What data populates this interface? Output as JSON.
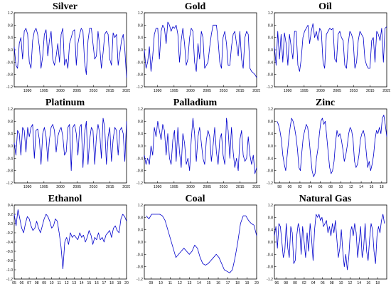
{
  "chart_data": [
    {
      "type": "line",
      "title": "Silver",
      "color": "#0000cc",
      "ylim": [
        -1.2,
        1.2
      ],
      "yticks": [
        "1.2",
        "0.8",
        "0.4",
        "0.0",
        "-0.4",
        "-0.8",
        "-1.2"
      ],
      "xlim": [
        1986,
        2020
      ],
      "xticks": [
        "1990",
        "1995",
        "2000",
        "2005",
        "2010",
        "2015",
        "2020"
      ],
      "x_start": 1986,
      "x_end": 2020,
      "values": [
        0.1,
        -0.5,
        -0.6,
        0.2,
        0.4,
        -0.3,
        0.6,
        0.7,
        0.5,
        -0.4,
        -0.6,
        0.3,
        0.6,
        0.7,
        0.5,
        0.1,
        -0.6,
        -0.2,
        0.5,
        0.65,
        -0.2,
        0.3,
        0.6,
        -0.3,
        -0.5,
        -0.2,
        0.2,
        -0.4,
        0.5,
        0.7,
        -0.5,
        -0.3,
        -0.6,
        0.2,
        0.4,
        0.6,
        0.65,
        -0.5,
        0.2,
        0.5,
        0.7,
        0.6,
        -0.4,
        -0.8,
        0.3,
        0.7,
        0.7,
        0.2,
        -0.3,
        -0.2,
        0.6,
        0.1,
        -0.6,
        -0.1,
        0.5,
        0.6,
        0.5,
        -0.3,
        -0.5,
        0.55,
        0.4,
        0.5,
        -0.5,
        -0.1,
        0.3,
        0.5,
        0.0,
        -0.9
      ]
    },
    {
      "type": "line",
      "title": "Gold",
      "color": "#0000cc",
      "ylim": [
        -1.2,
        1.2
      ],
      "yticks": [
        "1.2",
        "0.8",
        "0.4",
        "0.0",
        "-0.4",
        "-0.8",
        "-1.2"
      ],
      "xlim": [
        1986,
        2020
      ],
      "xticks": [
        "1990",
        "1995",
        "2000",
        "2005",
        "2010",
        "2015",
        "2020"
      ],
      "x_start": 1986,
      "x_end": 2020,
      "values": [
        0.0,
        -0.6,
        -0.4,
        0.1,
        -0.7,
        -0.2,
        0.5,
        0.7,
        0.7,
        -0.3,
        0.6,
        0.8,
        0.7,
        0.2,
        0.9,
        0.8,
        0.6,
        0.75,
        0.7,
        0.8,
        0.5,
        -0.4,
        0.3,
        0.7,
        0.2,
        -0.5,
        -0.3,
        0.4,
        0.7,
        0.6,
        -0.4,
        -0.7,
        0.2,
        -0.3,
        0.6,
        0.4,
        -0.6,
        -0.5,
        -0.4,
        0.1,
        0.5,
        0.8,
        0.8,
        0.8,
        0.3,
        -0.4,
        -0.6,
        0.4,
        0.6,
        0.2,
        -0.5,
        -0.5,
        0.1,
        0.5,
        0.6,
        0.2,
        -0.2,
        0.6,
        -0.3,
        -0.6,
        0.4,
        0.6,
        0.5,
        -0.6,
        -0.7,
        -0.75,
        -0.8,
        -0.9
      ]
    },
    {
      "type": "line",
      "title": "Oil",
      "color": "#0000cc",
      "ylim": [
        -1.2,
        1.2
      ],
      "yticks": [
        "1.2",
        "0.8",
        "0.4",
        "0.0",
        "-0.4",
        "-0.8",
        "-1.2"
      ],
      "xlim": [
        1986,
        2020
      ],
      "xticks": [
        "1990",
        "1995",
        "2000",
        "2005",
        "2010",
        "2015",
        "2020"
      ],
      "x_start": 1986,
      "x_end": 2020,
      "values": [
        0.1,
        -0.5,
        0.6,
        -0.3,
        0.5,
        -0.4,
        0.55,
        0.2,
        -0.5,
        0.5,
        0.1,
        -0.3,
        0.6,
        0.6,
        -0.5,
        -0.7,
        -0.3,
        0.4,
        0.6,
        0.7,
        0.8,
        0.2,
        0.6,
        0.85,
        0.4,
        0.6,
        0.3,
        0.7,
        0.6,
        -0.4,
        -0.6,
        0.5,
        0.6,
        0.7,
        0.65,
        0.7,
        -0.3,
        -0.4,
        0.5,
        0.6,
        0.4,
        0.3,
        -0.5,
        -0.6,
        0.2,
        0.6,
        0.5,
        0.3,
        -0.6,
        -0.4,
        0.3,
        0.6,
        0.5,
        0.4,
        -0.3,
        -0.5,
        -0.6,
        -0.6,
        0.3,
        0.4,
        -0.4,
        0.6,
        0.5,
        0.3,
        0.7,
        -0.4,
        0.7,
        0.75
      ]
    },
    {
      "type": "line",
      "title": "Platinum",
      "color": "#0000cc",
      "ylim": [
        -1.2,
        1.2
      ],
      "yticks": [
        "1.2",
        "0.8",
        "0.4",
        "0.0",
        "-0.4",
        "-0.8",
        "-1.2"
      ],
      "xlim": [
        1986,
        2020
      ],
      "xticks": [
        "1990",
        "1995",
        "2000",
        "2005",
        "2010",
        "2015",
        "2020"
      ],
      "x_start": 1986,
      "x_end": 2020,
      "values": [
        0.1,
        -0.3,
        0.5,
        0.4,
        -0.3,
        0.6,
        0.5,
        -0.2,
        0.6,
        0.3,
        0.6,
        0.7,
        -0.4,
        0.5,
        0.55,
        0.2,
        -0.6,
        0.4,
        0.6,
        0.3,
        -0.5,
        0.2,
        0.6,
        0.7,
        0.5,
        -0.2,
        0.3,
        0.5,
        0.6,
        0.3,
        -0.3,
        -0.2,
        0.6,
        0.7,
        -0.8,
        0.6,
        0.7,
        0.4,
        -0.3,
        0.6,
        0.7,
        -0.7,
        0.4,
        0.8,
        -0.6,
        0.2,
        0.6,
        0.5,
        -0.6,
        0.3,
        0.7,
        0.4,
        -0.4,
        0.9,
        0.6,
        -0.6,
        0.3,
        0.6,
        -0.5,
        0.2,
        0.6,
        0.5,
        -0.3,
        0.5,
        0.6,
        0.4,
        -0.5,
        0.8
      ]
    },
    {
      "type": "line",
      "title": "Palladium",
      "color": "#0000cc",
      "ylim": [
        -1.2,
        1.2
      ],
      "yticks": [
        "1.2",
        "0.8",
        "0.4",
        "0.0",
        "-0.4",
        "-0.8",
        "-1.2"
      ],
      "xlim": [
        1986,
        2020
      ],
      "xticks": [
        "1990",
        "1995",
        "2000",
        "2005",
        "2010",
        "2015",
        "2020"
      ],
      "x_start": 1986,
      "x_end": 2020,
      "values": [
        -0.3,
        -0.6,
        -0.4,
        -0.6,
        0.0,
        -0.3,
        0.6,
        0.3,
        0.8,
        0.5,
        0.2,
        0.7,
        0.5,
        -0.3,
        0.4,
        -0.4,
        -0.6,
        0.2,
        0.5,
        -0.5,
        0.6,
        -0.2,
        -0.7,
        0.4,
        0.1,
        -0.6,
        -0.4,
        -0.8,
        0.2,
        0.9,
        0.4,
        -0.5,
        0.3,
        0.6,
        0.1,
        -0.4,
        -0.6,
        0.2,
        0.5,
        0.3,
        -0.5,
        0.0,
        0.6,
        -0.2,
        -0.6,
        0.2,
        0.4,
        -0.3,
        -0.6,
        0.9,
        0.5,
        -0.4,
        0.6,
        -0.2,
        -0.7,
        -0.4,
        -0.8,
        0.2,
        0.5,
        -0.3,
        -0.5,
        -0.4,
        0.3,
        -0.3,
        -0.6,
        -0.3,
        -0.9,
        -0.7
      ]
    },
    {
      "type": "line",
      "title": "Zinc",
      "color": "#0000cc",
      "ylim": [
        -1.2,
        1.2
      ],
      "yticks": [
        "1.2",
        "0.8",
        "0.4",
        "0.0",
        "-0.4",
        "-0.8",
        "-1.2"
      ],
      "xlim": [
        1997,
        2019
      ],
      "xticks": [
        "98",
        "00",
        "02",
        "04",
        "06",
        "08",
        "10",
        "12",
        "14",
        "16",
        "18"
      ],
      "x_start": 1997.5,
      "x_end": 2019,
      "values": [
        0.8,
        0.7,
        0.5,
        0.2,
        -0.3,
        -0.6,
        -0.8,
        -0.3,
        0.2,
        0.6,
        0.9,
        0.8,
        0.6,
        0.3,
        -0.1,
        -0.7,
        -0.8,
        -0.2,
        0.3,
        0.5,
        0.7,
        0.6,
        0.2,
        -0.3,
        -0.8,
        -1.0,
        -0.9,
        -0.4,
        -0.1,
        0.4,
        0.8,
        0.9,
        0.7,
        0.8,
        0.3,
        -0.2,
        -0.7,
        -0.9,
        -0.8,
        -0.5,
        0.1,
        0.5,
        0.3,
        0.4,
        0.2,
        -0.1,
        -0.5,
        -0.3,
        0.0,
        0.4,
        0.6,
        0.5,
        0.2,
        -0.5,
        -0.7,
        -0.6,
        -0.3,
        0.2,
        0.4,
        0.5,
        0.3,
        -0.2,
        -0.7,
        -0.5,
        -0.8,
        -0.6,
        -0.3,
        0.2,
        0.5,
        0.4,
        0.6,
        0.4,
        0.9,
        1.0,
        0.7,
        0.3
      ]
    },
    {
      "type": "line",
      "title": "Ethanol",
      "color": "#0000cc",
      "ylim": [
        -1.2,
        0.4
      ],
      "yticks": [
        "0.4",
        "0.2",
        "0.0",
        "-0.2",
        "-0.4",
        "-0.6",
        "-0.8",
        "-1.0",
        "-1.2"
      ],
      "xlim": [
        2005,
        2020
      ],
      "xticks": [
        "05",
        "06",
        "07",
        "08",
        "09",
        "10",
        "11",
        "12",
        "13",
        "14",
        "15",
        "16",
        "17",
        "18",
        "19",
        "20"
      ],
      "x_start": 2005,
      "x_end": 2020,
      "values": [
        0.2,
        -0.05,
        0.3,
        0.1,
        -0.1,
        -0.2,
        0.0,
        0.15,
        0.1,
        -0.05,
        -0.15,
        -0.1,
        0.05,
        -0.1,
        -0.2,
        -0.05,
        0.1,
        0.2,
        0.15,
        0.05,
        -0.1,
        -0.05,
        0.1,
        0.05,
        -0.2,
        -0.5,
        -0.98,
        -0.4,
        -0.3,
        -0.45,
        -0.2,
        -0.3,
        -0.25,
        -0.3,
        -0.35,
        -0.2,
        -0.3,
        -0.25,
        -0.4,
        -0.3,
        -0.15,
        -0.25,
        -0.45,
        -0.3,
        -0.35,
        -0.2,
        -0.35,
        -0.3,
        -0.4,
        -0.25,
        -0.2,
        -0.15,
        -0.3,
        -0.1,
        -0.05,
        -0.15,
        -0.2,
        0.1,
        0.2,
        0.15,
        0.05
      ]
    },
    {
      "type": "line",
      "title": "Coal",
      "color": "#0000cc",
      "ylim": [
        -1.2,
        1.2
      ],
      "yticks": [
        "1.2",
        "0.8",
        "0.4",
        "0.0",
        "-0.4",
        "-0.8",
        "-1.2"
      ],
      "xlim": [
        2008.3,
        2020
      ],
      "xticks": [
        "09",
        "10",
        "11",
        "12",
        "13",
        "14",
        "15",
        "16",
        "17",
        "18",
        "19",
        "20"
      ],
      "x_start": 2008.5,
      "x_end": 2020,
      "values": [
        0.85,
        0.75,
        0.9,
        0.9,
        0.9,
        0.9,
        0.85,
        0.7,
        0.4,
        0.1,
        -0.2,
        -0.5,
        -0.4,
        -0.3,
        -0.2,
        -0.3,
        -0.4,
        -0.3,
        -0.1,
        -0.2,
        -0.5,
        -0.7,
        -0.75,
        -0.7,
        -0.6,
        -0.5,
        -0.4,
        -0.5,
        -0.7,
        -0.9,
        -0.95,
        -1.0,
        -0.9,
        -0.5,
        0.0,
        0.6,
        0.85,
        0.85,
        0.7,
        0.6,
        0.55,
        0.2
      ]
    },
    {
      "type": "line",
      "title": "Natural Gas",
      "color": "#0000cc",
      "ylim": [
        -1.2,
        1.2
      ],
      "yticks": [
        "1.2",
        "0.8",
        "0.4",
        "0.0",
        "-0.4",
        "-0.8",
        "-1.2"
      ],
      "xlim": [
        1995.5,
        2020
      ],
      "xticks": [
        "96",
        "98",
        "00",
        "02",
        "04",
        "06",
        "08",
        "10",
        "12",
        "14",
        "16",
        "18"
      ],
      "x_start": 1995.5,
      "x_end": 2019.5,
      "values": [
        0.2,
        0.5,
        -0.2,
        0.6,
        0.5,
        0.0,
        -0.5,
        -0.3,
        0.6,
        -0.2,
        -0.5,
        0.5,
        0.3,
        -0.7,
        -0.6,
        0.2,
        0.6,
        0.4,
        -0.4,
        0.5,
        0.0,
        -0.5,
        0.3,
        -0.3,
        0.6,
        0.1,
        -0.6,
        0.4,
        0.9,
        0.8,
        0.9,
        0.7,
        0.8,
        0.5,
        0.6,
        0.7,
        0.3,
        0.5,
        0.2,
        0.6,
        0.3,
        0.7,
        0.1,
        -0.5,
        -0.2,
        0.4,
        -0.3,
        -0.8,
        -0.4,
        -0.9,
        -0.5,
        0.3,
        0.5,
        0.2,
        0.6,
        0.3,
        -0.5,
        0.0,
        0.5,
        -0.5,
        -0.2,
        0.6,
        -0.3,
        -0.6,
        0.1,
        0.6,
        0.4,
        -0.3,
        -0.7,
        0.2,
        0.5,
        0.3,
        0.7,
        0.9,
        0.6
      ]
    }
  ]
}
